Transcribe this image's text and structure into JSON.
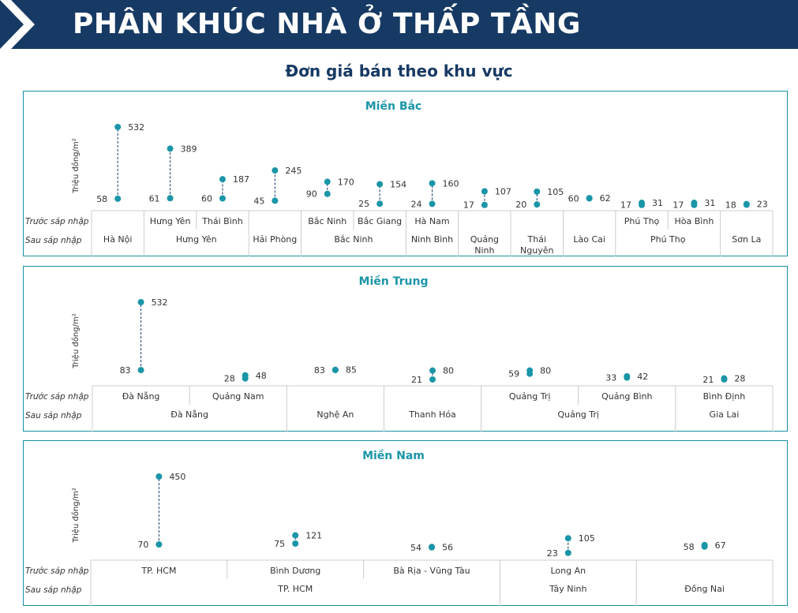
{
  "header": {
    "title": "PHÂN KHÚC NHÀ Ở THẤP TẦNG",
    "subtitle": "Đơn giá bán theo khu vực"
  },
  "colors": {
    "banner": "#173a64",
    "accent": "#1b95a8",
    "point": "#1b95a8",
    "border": "#1b8fa0"
  },
  "labels": {
    "ylabel": "Triệu đồng/m²",
    "before": "Trước sáp nhập",
    "after": "Sau sáp nhập"
  },
  "chart_data": [
    {
      "type": "dumbbell",
      "title": "Miền Bắc",
      "ylabel": "Triệu đồng/m²",
      "ylim": [
        0,
        532
      ],
      "categories": [
        "Hà Nội",
        "Hưng Yên",
        "Thái Bình",
        "Hải Phòng",
        "Bắc Ninh",
        "Bắc Giang",
        "Hà Nam",
        "Quảng Ninh",
        "Thái Nguyên",
        "Lào Cai",
        "Phú Thọ",
        "Hòa Bình",
        "Sơn La"
      ],
      "low": [
        58,
        61,
        60,
        45,
        90,
        25,
        24,
        17,
        20,
        60,
        17,
        17,
        18
      ],
      "high": [
        532,
        389,
        187,
        245,
        170,
        154,
        160,
        107,
        105,
        62,
        31,
        31,
        23
      ],
      "before_labels": [
        "",
        "Hưng Yên",
        "Thái Bình",
        "",
        "Bắc Ninh",
        "Bắc Giang",
        "Hà Nam",
        "",
        "",
        "",
        "Phú Thọ",
        "Hòa Bình",
        ""
      ],
      "after_groups": [
        {
          "label": "Hà Nội",
          "span": 1
        },
        {
          "label": "Hưng Yên",
          "span": 2
        },
        {
          "label": "Hải Phòng",
          "span": 1
        },
        {
          "label": "Bắc Ninh",
          "span": 2
        },
        {
          "label": "Ninh Bình",
          "span": 1
        },
        {
          "label": "Quảng Ninh",
          "span": 1
        },
        {
          "label": "Thái Nguyên",
          "span": 1
        },
        {
          "label": "Lào Cai",
          "span": 1
        },
        {
          "label": "Phú Thọ",
          "span": 2
        },
        {
          "label": "Sơn La",
          "span": 1
        }
      ]
    },
    {
      "type": "dumbbell",
      "title": "Miền Trung",
      "ylabel": "Triệu đồng/m²",
      "ylim": [
        0,
        532
      ],
      "categories": [
        "Đà Nẵng",
        "Quảng Nam",
        "Nghệ An",
        "Thanh Hóa",
        "Quảng Trị",
        "Quảng Bình",
        "Bình Định"
      ],
      "low": [
        83,
        28,
        83,
        21,
        59,
        33,
        21
      ],
      "high": [
        532,
        48,
        85,
        80,
        80,
        42,
        28
      ],
      "before_labels": [
        "Đà Nẵng",
        "Quảng Nam",
        "",
        "",
        "Quảng Trị",
        "Quảng Bình",
        "Bình Định"
      ],
      "after_groups": [
        {
          "label": "Đà Nẵng",
          "span": 2
        },
        {
          "label": "Nghệ An",
          "span": 1
        },
        {
          "label": "Thanh Hóa",
          "span": 1
        },
        {
          "label": "Quảng Trị",
          "span": 2
        },
        {
          "label": "Gia Lai",
          "span": 1
        }
      ]
    },
    {
      "type": "dumbbell",
      "title": "Miền Nam",
      "ylabel": "Triệu đồng/m²",
      "ylim": [
        0,
        450
      ],
      "categories": [
        "TP. HCM",
        "Bình Dương",
        "Bà Rịa - Vũng Tàu",
        "Long An",
        "Đồng Nai"
      ],
      "low": [
        70,
        75,
        54,
        23,
        58
      ],
      "high": [
        450,
        121,
        56,
        105,
        67
      ],
      "before_labels": [
        "TP. HCM",
        "Bình Dương",
        "Bà Rịa - Vũng Tàu",
        "Long An",
        ""
      ],
      "after_groups": [
        {
          "label": "TP. HCM",
          "span": 3
        },
        {
          "label": "Tây Ninh",
          "span": 1
        },
        {
          "label": "Đồng Nai",
          "span": 1
        }
      ]
    }
  ]
}
